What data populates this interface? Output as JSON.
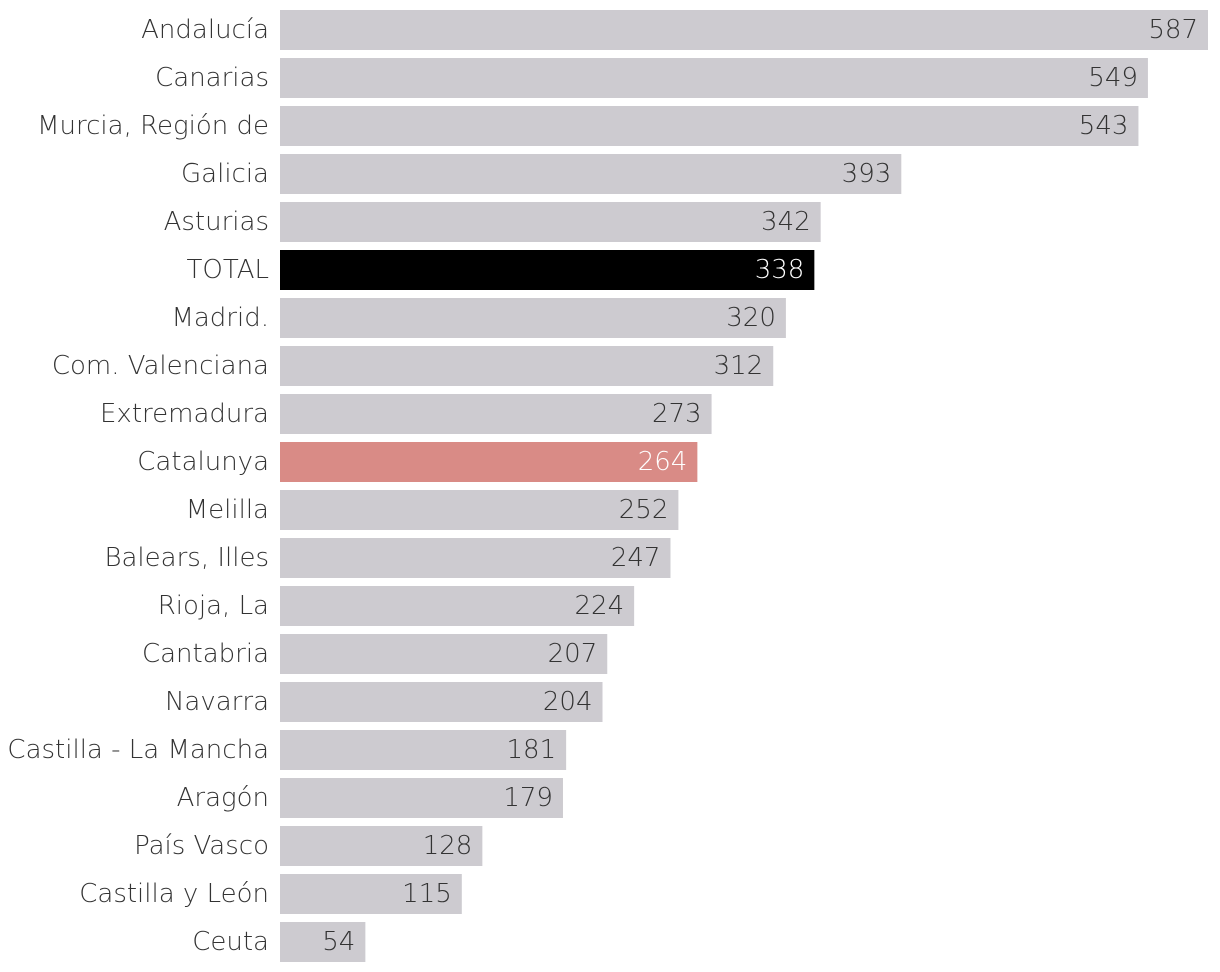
{
  "chart_data": {
    "type": "bar",
    "orientation": "horizontal",
    "title": "",
    "xlabel": "",
    "ylabel": "",
    "xlim": [
      0,
      587
    ],
    "grid": false,
    "legend": "none",
    "categories": [
      "Andalucía",
      "Canarias",
      "Murcia, Región de",
      "Galicia",
      "Asturias",
      "TOTAL",
      "Madrid.",
      "Com. Valenciana",
      "Extremadura",
      "Catalunya",
      "Melilla",
      "Balears, Illes",
      "Rioja, La",
      "Cantabria",
      "Navarra",
      "Castilla - La Mancha",
      "Aragón",
      "País Vasco",
      "Castilla y León",
      "Ceuta"
    ],
    "values": [
      587,
      549,
      543,
      393,
      342,
      338,
      320,
      312,
      273,
      264,
      252,
      247,
      224,
      207,
      204,
      181,
      179,
      128,
      115,
      54
    ],
    "colors": {
      "default": "#cdcbd0",
      "TOTAL": "#000000",
      "Catalunya": "#d98b86",
      "category_text": "#333333",
      "value_text_default": "#333333",
      "value_text_highlight": "#ffffff"
    }
  }
}
